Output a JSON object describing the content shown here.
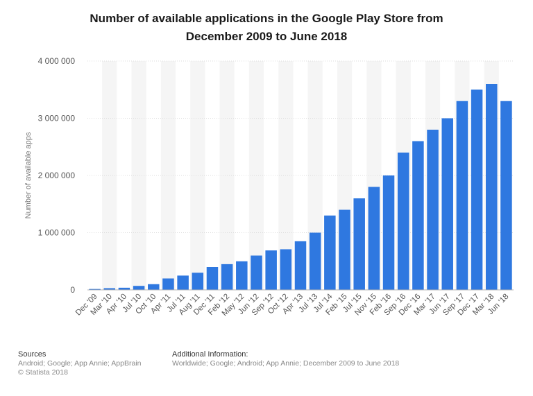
{
  "chart_data": {
    "type": "bar",
    "title_line1": "Number of available applications in the Google Play Store from",
    "title_line2": "December 2009 to June 2018",
    "ylabel": "Number of available apps",
    "xlabel": "",
    "ylim": [
      0,
      4000000
    ],
    "yticks": [
      0,
      1000000,
      2000000,
      3000000,
      4000000
    ],
    "ytick_labels": [
      "0",
      "1 000 000",
      "2 000 000",
      "3 000 000",
      "4 000 000"
    ],
    "categories": [
      "Dec '09",
      "Mar '10",
      "Apr '10",
      "Jul '10",
      "Oct '10",
      "Apr '11",
      "Jul '11",
      "Aug '11",
      "Dec '11",
      "Feb '12",
      "May '12",
      "Jun '12",
      "Sep '12",
      "Oct '12",
      "Apr '13",
      "Jul '13",
      "Jul '14",
      "Feb '15",
      "Jul '15",
      "Nov '15",
      "Feb '16",
      "Sep '16",
      "Dec '16",
      "Mar '17",
      "Jun '17",
      "Sep '17",
      "Dec '17",
      "Mar '18",
      "Jun '18"
    ],
    "values": [
      16000,
      30000,
      38000,
      70000,
      100000,
      200000,
      250000,
      300000,
      400000,
      450000,
      500000,
      600000,
      690000,
      710000,
      850000,
      1000000,
      1300000,
      1400000,
      1600000,
      1800000,
      2000000,
      2400000,
      2600000,
      2800000,
      3000000,
      3300000,
      3500000,
      3600000,
      3300000
    ],
    "color": "#2f78e0",
    "grid": true
  },
  "footer": {
    "sources_heading": "Sources",
    "sources_text": "Android; Google; App Annie; AppBrain",
    "copyright": "© Statista 2018",
    "additional_heading": "Additional Information:",
    "additional_text": "Worldwide; Google; Android; App Annie; December 2009 to June 2018"
  }
}
